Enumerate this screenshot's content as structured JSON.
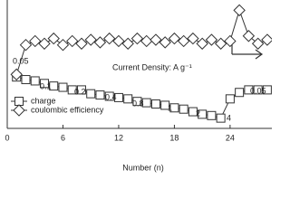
{
  "chart_data": {
    "type": "line",
    "x_label": "Number (n)",
    "x": [
      1,
      2,
      3,
      4,
      5,
      6,
      7,
      8,
      9,
      10,
      11,
      12,
      13,
      14,
      15,
      16,
      17,
      18,
      19,
      20,
      21,
      22,
      23,
      24,
      25,
      26,
      27,
      28
    ],
    "series": [
      {
        "name": "charge",
        "color": "#333333",
        "marker": "square",
        "values": [
          40,
          38,
          37,
          35,
          33,
          32,
          30,
          30,
          27,
          26,
          25,
          24,
          23,
          21,
          20,
          19,
          18,
          16,
          15,
          13,
          11,
          10,
          8,
          23,
          28,
          30,
          30,
          30
        ]
      },
      {
        "name": "coulombic efficiency",
        "color": "#333333",
        "marker": "diamond",
        "values": [
          42,
          65,
          68,
          66,
          70,
          65,
          68,
          66,
          69,
          67,
          70,
          68,
          66,
          70,
          68,
          69,
          67,
          70,
          68,
          70,
          66,
          69,
          66,
          68,
          92,
          72,
          66,
          69
        ]
      }
    ],
    "annotations": [
      "Current Density: A g⁻¹",
      "0.05",
      "0.1",
      "0.2",
      "0.4",
      "0.8",
      "1",
      "2",
      "4",
      "0.05"
    ],
    "xlim": [
      0,
      28.5
    ],
    "xticks": [
      0,
      6,
      12,
      18,
      24
    ],
    "ylim": [
      0,
      100
    ]
  }
}
